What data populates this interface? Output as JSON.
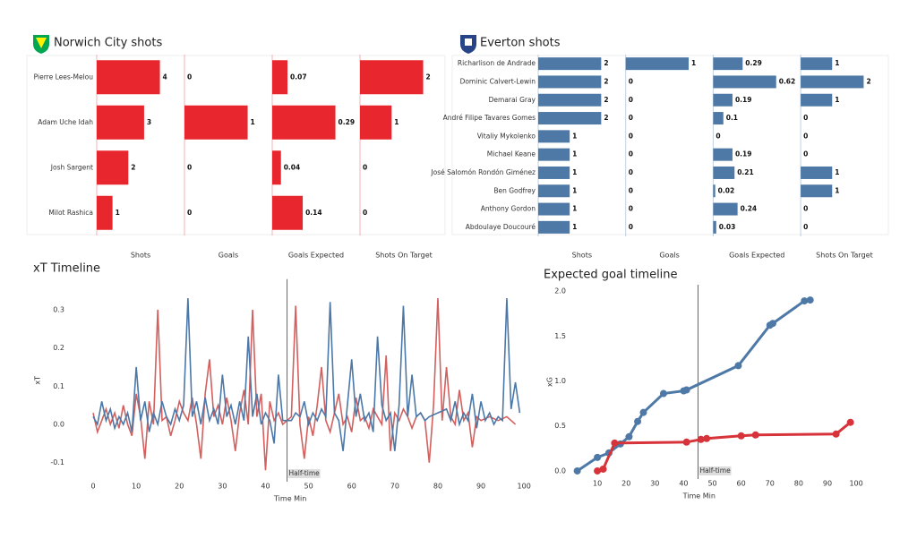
{
  "chart_data": [
    {
      "type": "bar",
      "title": "Norwich City shots",
      "categories": [
        "Pierre Lees-Melou",
        "Adam Uche Idah",
        "Josh Sargent",
        "Milot Rashica"
      ],
      "color": "#e8262d",
      "series": [
        {
          "name": "Shots",
          "values": [
            4,
            3,
            2,
            1
          ]
        },
        {
          "name": "Goals",
          "values": [
            0,
            1,
            0,
            0
          ]
        },
        {
          "name": "Goals Expected",
          "values": [
            0.07,
            0.29,
            0.04,
            0.14
          ]
        },
        {
          "name": "Shots On Target",
          "values": [
            2,
            1,
            0,
            0
          ]
        }
      ]
    },
    {
      "type": "bar",
      "title": "Everton shots",
      "categories": [
        "Richarlison de Andrade",
        "Dominic Calvert-Lewin",
        "Demarai Gray",
        "André Filipe Tavares Gomes",
        "Vitaliy Mykolenko",
        "Michael Keane",
        "José Salomón Rondón Giménez",
        "Ben Godfrey",
        "Anthony Gordon",
        "Abdoulaye Doucouré"
      ],
      "color": "#4e79a7",
      "series": [
        {
          "name": "Shots",
          "values": [
            2,
            2,
            2,
            2,
            1,
            1,
            1,
            1,
            1,
            1
          ]
        },
        {
          "name": "Goals",
          "values": [
            1,
            0,
            0,
            0,
            0,
            0,
            0,
            0,
            0,
            0
          ]
        },
        {
          "name": "Goals Expected",
          "values": [
            0.29,
            0.62,
            0.19,
            0.1,
            0,
            0.19,
            0.21,
            0.02,
            0.24,
            0.03
          ]
        },
        {
          "name": "Shots On Target",
          "values": [
            1,
            2,
            1,
            0,
            0,
            0,
            1,
            1,
            0,
            0
          ]
        }
      ]
    },
    {
      "type": "line",
      "title": "xT Timeline",
      "xlabel": "Time Min",
      "ylabel": "xT",
      "xlim": [
        -2,
        101
      ],
      "ylim": [
        -0.15,
        0.38
      ],
      "xticks": [
        0,
        10,
        20,
        30,
        40,
        50,
        60,
        70,
        80,
        90,
        100
      ],
      "yticks": [
        -0.1,
        {
          "value": 0,
          "label": "0.0"
        },
        0.1,
        0.2,
        0.3
      ],
      "annotation": {
        "text": "Half-time",
        "x": 45
      },
      "series": [
        {
          "color": "#d1605e",
          "x": [
            0,
            1,
            2,
            3,
            4,
            5,
            6,
            7,
            8,
            9,
            10,
            11,
            12,
            13,
            14,
            15,
            16,
            17,
            18,
            19,
            20,
            21,
            22,
            23,
            24,
            25,
            26,
            27,
            28,
            29,
            30,
            31,
            32,
            33,
            34,
            35,
            36,
            37,
            38,
            39,
            40,
            41,
            42,
            43,
            44,
            46,
            47,
            48,
            49,
            50,
            51,
            52,
            53,
            54,
            55,
            56,
            57,
            58,
            59,
            60,
            61,
            62,
            63,
            64,
            65,
            66,
            67,
            68,
            69,
            70,
            71,
            72,
            73,
            74,
            75,
            76,
            77,
            78,
            79,
            80,
            81,
            82,
            83,
            84,
            85,
            86,
            87,
            88,
            89,
            90,
            92,
            94,
            96,
            98
          ],
          "values": [
            0.03,
            -0.02,
            0.01,
            0.04,
            0,
            0.03,
            -0.01,
            0.05,
            0,
            -0.03,
            0.08,
            0.02,
            -0.09,
            0.06,
            0,
            0.3,
            0.01,
            0.02,
            -0.03,
            0.01,
            0.06,
            0.03,
            0.01,
            0.07,
            0,
            -0.09,
            0.08,
            0.17,
            0.02,
            0.05,
            0,
            0.07,
            0.01,
            -0.07,
            0.03,
            0.09,
            0,
            0.3,
            0.02,
            0.08,
            -0.12,
            0.06,
            0.01,
            0.03,
            0,
            0.02,
            0.31,
            0,
            -0.09,
            0.02,
            -0.03,
            0.05,
            0.15,
            0.01,
            -0.02,
            0.03,
            0.08,
            0,
            0.02,
            -0.02,
            0.07,
            0.01,
            0.02,
            -0.01,
            0.04,
            0.02,
            0,
            0.18,
            -0.07,
            0.03,
            0.01,
            0.04,
            0.02,
            -0.01,
            0.02,
            0.03,
            0.01,
            -0.1,
            0.05,
            0.33,
            0.01,
            0.15,
            0.02,
            0,
            0.09,
            0.01,
            0.03,
            -0.06,
            0.02,
            0.01,
            0.02,
            0.01,
            0.02,
            0
          ]
        },
        {
          "color": "#4c78a8",
          "x": [
            0,
            1,
            2,
            3,
            4,
            5,
            6,
            7,
            8,
            9,
            10,
            11,
            12,
            13,
            14,
            15,
            16,
            17,
            18,
            19,
            20,
            21,
            22,
            23,
            24,
            25,
            26,
            27,
            28,
            29,
            30,
            31,
            32,
            33,
            34,
            35,
            36,
            37,
            38,
            39,
            40,
            41,
            42,
            43,
            44,
            46,
            47,
            48,
            49,
            50,
            51,
            52,
            53,
            54,
            55,
            56,
            57,
            58,
            59,
            60,
            61,
            62,
            63,
            64,
            65,
            66,
            67,
            68,
            69,
            70,
            71,
            72,
            73,
            74,
            75,
            76,
            77,
            78,
            80,
            82,
            83,
            84,
            85,
            86,
            87,
            88,
            89,
            90,
            91,
            92,
            93,
            94,
            95,
            96,
            97,
            98,
            99
          ],
          "values": [
            0.02,
            0,
            0.06,
            0.01,
            0.04,
            -0.01,
            0.02,
            0,
            0.03,
            -0.02,
            0.15,
            0.01,
            0.06,
            -0.02,
            0.03,
            0,
            0.06,
            0.02,
            0,
            0.04,
            0.01,
            0.05,
            0.33,
            0.02,
            0.06,
            0,
            0.07,
            0.01,
            0.04,
            0,
            0.13,
            0.02,
            0.05,
            0,
            0.06,
            0.01,
            0.23,
            0.02,
            0.08,
            0,
            0.03,
            0.01,
            -0.05,
            0.13,
            0.01,
            0.01,
            0.03,
            0.02,
            0.06,
            0,
            0.03,
            0.01,
            0.04,
            0.02,
            0.32,
            0.03,
            0.01,
            -0.07,
            0.05,
            0.17,
            0.02,
            0.08,
            0.01,
            0.03,
            -0.02,
            0.23,
            0.05,
            0.01,
            0.03,
            -0.07,
            0.05,
            0.31,
            0.02,
            0.13,
            0.02,
            0.03,
            0.01,
            0.02,
            0.03,
            0.04,
            0.01,
            0.06,
            0,
            0.03,
            0.01,
            0.08,
            -0.01,
            0.06,
            0.01,
            0.03,
            0,
            0.02,
            0.01,
            0.33,
            0.04,
            0.11,
            0.03
          ]
        }
      ]
    },
    {
      "type": "line",
      "title": "Expected goal timeline",
      "xlabel": "Time Min",
      "ylabel": "xG",
      "markers": true,
      "xlim": [
        0,
        102
      ],
      "ylim": [
        -0.09,
        2.07
      ],
      "xticks": [
        10,
        20,
        30,
        40,
        50,
        60,
        70,
        80,
        90,
        100
      ],
      "yticks": [
        {
          "value": 0,
          "label": "0.0"
        },
        0.5,
        {
          "value": 1,
          "label": "1.0"
        },
        1.5,
        {
          "value": 2,
          "label": "2.0"
        }
      ],
      "annotation": {
        "text": "Half-time",
        "x": 45
      },
      "series": [
        {
          "color": "#4e79a7",
          "x": [
            3,
            10,
            14,
            18,
            21,
            24,
            26,
            33,
            40,
            41,
            59,
            70,
            71,
            82,
            84
          ],
          "values": [
            0,
            0.15,
            0.2,
            0.3,
            0.38,
            0.55,
            0.65,
            0.86,
            0.89,
            0.9,
            1.17,
            1.62,
            1.64,
            1.89,
            1.9
          ]
        },
        {
          "color": "#d7333a",
          "x": [
            10,
            12,
            16,
            41,
            46,
            48,
            60,
            65,
            93,
            98
          ],
          "values": [
            0,
            0.02,
            0.31,
            0.32,
            0.35,
            0.36,
            0.39,
            0.4,
            0.41,
            0.54
          ]
        }
      ]
    }
  ]
}
